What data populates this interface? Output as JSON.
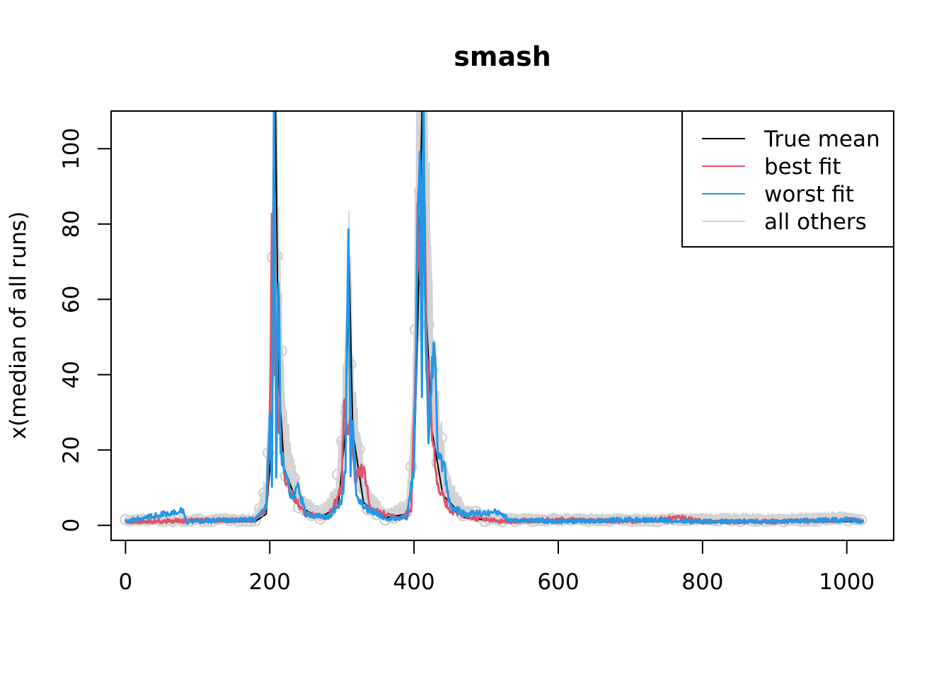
{
  "chart_data": {
    "type": "line",
    "title": "smash",
    "xlabel": "",
    "ylabel": "x(median of all runs)",
    "xlim": [
      -20,
      1065
    ],
    "ylim": [
      -4,
      110
    ],
    "x_ticks": [
      0,
      200,
      400,
      600,
      800,
      1000
    ],
    "y_ticks": [
      0,
      20,
      40,
      60,
      80,
      100
    ],
    "grid": false,
    "legend_position": "top-right",
    "n_points": 1024,
    "peaks": [
      {
        "x": 208,
        "height": 110
      },
      {
        "x": 310,
        "height": 70
      },
      {
        "x": 411,
        "height": 110
      }
    ],
    "baseline": 1,
    "series": [
      {
        "name": "True mean",
        "color": "#000000",
        "style": "line",
        "points": [
          [
            0,
            1
          ],
          [
            180,
            1
          ],
          [
            195,
            3
          ],
          [
            202,
            20
          ],
          [
            206,
            60
          ],
          [
            208,
            110
          ],
          [
            212,
            40
          ],
          [
            220,
            15
          ],
          [
            240,
            5
          ],
          [
            270,
            2
          ],
          [
            295,
            5
          ],
          [
            305,
            25
          ],
          [
            310,
            70
          ],
          [
            315,
            25
          ],
          [
            330,
            6
          ],
          [
            360,
            2
          ],
          [
            390,
            3
          ],
          [
            400,
            15
          ],
          [
            406,
            60
          ],
          [
            411,
            110
          ],
          [
            416,
            60
          ],
          [
            425,
            25
          ],
          [
            440,
            8
          ],
          [
            470,
            2
          ],
          [
            520,
            1
          ],
          [
            1023,
            1
          ]
        ]
      },
      {
        "name": "best fit",
        "color": "#DF536B",
        "style": "line",
        "points": [
          [
            0,
            1
          ],
          [
            180,
            1.5
          ],
          [
            195,
            4
          ],
          [
            200,
            25
          ],
          [
            203,
            83
          ],
          [
            207,
            45
          ],
          [
            212,
            30
          ],
          [
            218,
            15
          ],
          [
            230,
            8
          ],
          [
            250,
            3
          ],
          [
            280,
            2
          ],
          [
            300,
            10
          ],
          [
            303,
            36
          ],
          [
            308,
            22
          ],
          [
            312,
            30
          ],
          [
            318,
            12
          ],
          [
            330,
            15
          ],
          [
            340,
            4
          ],
          [
            380,
            2
          ],
          [
            396,
            4
          ],
          [
            402,
            40
          ],
          [
            405,
            82
          ],
          [
            409,
            60
          ],
          [
            413,
            110
          ],
          [
            418,
            45
          ],
          [
            425,
            25
          ],
          [
            432,
            10
          ],
          [
            450,
            4
          ],
          [
            480,
            2
          ],
          [
            520,
            1
          ],
          [
            600,
            1.5
          ],
          [
            700,
            1
          ],
          [
            770,
            2
          ],
          [
            800,
            1
          ],
          [
            900,
            1
          ],
          [
            1000,
            1.5
          ],
          [
            1023,
            1
          ]
        ]
      },
      {
        "name": "worst fit",
        "color": "#2297E6",
        "style": "line",
        "points": [
          [
            0,
            1
          ],
          [
            80,
            4
          ],
          [
            85,
            1
          ],
          [
            180,
            1.5
          ],
          [
            195,
            5
          ],
          [
            200,
            28
          ],
          [
            203,
            10
          ],
          [
            206,
            110
          ],
          [
            209,
            15
          ],
          [
            212,
            70
          ],
          [
            215,
            20
          ],
          [
            222,
            15
          ],
          [
            232,
            6
          ],
          [
            238,
            11
          ],
          [
            250,
            3
          ],
          [
            280,
            2
          ],
          [
            300,
            6
          ],
          [
            305,
            15
          ],
          [
            309,
            78
          ],
          [
            312,
            12
          ],
          [
            315,
            29
          ],
          [
            320,
            8
          ],
          [
            330,
            5
          ],
          [
            360,
            2
          ],
          [
            390,
            2
          ],
          [
            400,
            15
          ],
          [
            408,
            110
          ],
          [
            411,
            30
          ],
          [
            413,
            110
          ],
          [
            416,
            55
          ],
          [
            420,
            20
          ],
          [
            428,
            51
          ],
          [
            433,
            20
          ],
          [
            442,
            15
          ],
          [
            450,
            5
          ],
          [
            470,
            3
          ],
          [
            520,
            3.5
          ],
          [
            530,
            1.5
          ],
          [
            600,
            1
          ],
          [
            700,
            1.5
          ],
          [
            800,
            1
          ],
          [
            900,
            1
          ],
          [
            1000,
            1.5
          ],
          [
            1023,
            1
          ]
        ]
      },
      {
        "name": "all others",
        "color": "#D3D3D3",
        "style": "line",
        "points": [
          [
            0,
            1
          ],
          [
            180,
            2
          ],
          [
            195,
            10
          ],
          [
            202,
            40
          ],
          [
            206,
            110
          ],
          [
            210,
            90
          ],
          [
            214,
            55
          ],
          [
            220,
            28
          ],
          [
            230,
            15
          ],
          [
            245,
            6
          ],
          [
            270,
            3
          ],
          [
            292,
            8
          ],
          [
            300,
            25
          ],
          [
            306,
            45
          ],
          [
            310,
            70
          ],
          [
            315,
            35
          ],
          [
            322,
            22
          ],
          [
            335,
            8
          ],
          [
            360,
            3
          ],
          [
            390,
            5
          ],
          [
            398,
            25
          ],
          [
            404,
            90
          ],
          [
            408,
            110
          ],
          [
            414,
            110
          ],
          [
            419,
            80
          ],
          [
            426,
            45
          ],
          [
            435,
            25
          ],
          [
            448,
            10
          ],
          [
            470,
            4
          ],
          [
            520,
            2
          ],
          [
            600,
            2
          ],
          [
            700,
            2
          ],
          [
            800,
            2
          ],
          [
            900,
            2
          ],
          [
            1000,
            2.5
          ],
          [
            1023,
            1.5
          ]
        ]
      }
    ]
  }
}
